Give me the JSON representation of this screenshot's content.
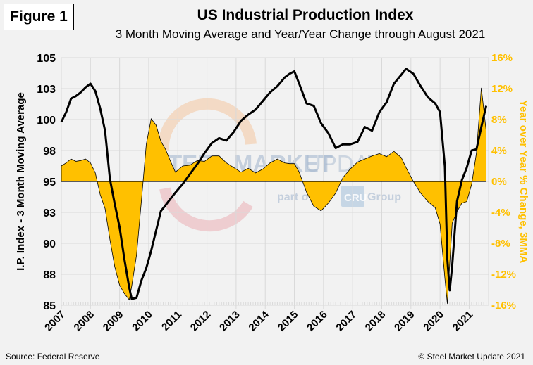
{
  "figure_label": "Figure 1",
  "title": "US Industrial Production  Index",
  "subtitle": "3 Month Moving Average and Year/Year Change through August 2021",
  "source": "Source: Federal Reserve",
  "copyright": "© Steel Market Update 2021",
  "watermark": {
    "brand": "STEEL MARKET UPDATE",
    "brand_bold": "STEEL MARKET",
    "brand_light": " UPDATE",
    "tagline_prefix": "part of the",
    "tagline_logo": "CRU",
    "tagline_suffix": "Group"
  },
  "colors": {
    "area_fill": "#FFC000",
    "line": "#000000",
    "grid": "#d9d9d9",
    "right_axis": "#FFC000"
  },
  "chart_data": {
    "type": "line+area",
    "title": "US Industrial Production  Index",
    "subtitle": "3 Month Moving Average and Year/Year Change through August 2021",
    "xlabel": "",
    "ylabel_left": "I.P. Index - 3 Month Moving Average",
    "ylabel_right": "Year over Year % Change, 3MMA",
    "x_start": "2007-01",
    "x_end": "2021-08",
    "x_ticks": [
      "2007",
      "2008",
      "2009",
      "2010",
      "2011",
      "2012",
      "2013",
      "2014",
      "2015",
      "2016",
      "2017",
      "2018",
      "2019",
      "2020",
      "2021"
    ],
    "ylim_left": [
      85,
      105
    ],
    "yticks_left": [
      105,
      103,
      100,
      98,
      95,
      93,
      90,
      88,
      85
    ],
    "ylim_right": [
      -16,
      16
    ],
    "yticks_right": [
      "16%",
      "12%",
      "8%",
      "4%",
      "0%",
      "-4%",
      "-8%",
      "-12%",
      "-16%"
    ],
    "grid": true,
    "legend": "none",
    "series": [
      {
        "name": "I.P. Index - 3 Month Moving Average",
        "axis": "left",
        "style": "line",
        "x": [
          "2007-01",
          "2007-03",
          "2007-05",
          "2007-07",
          "2007-09",
          "2007-11",
          "2008-01",
          "2008-03",
          "2008-05",
          "2008-07",
          "2008-09",
          "2008-11",
          "2009-01",
          "2009-03",
          "2009-05",
          "2009-06",
          "2009-08",
          "2009-10",
          "2009-12",
          "2010-02",
          "2010-04",
          "2010-06",
          "2010-08",
          "2010-10",
          "2010-12",
          "2011-03",
          "2011-06",
          "2011-09",
          "2011-12",
          "2012-03",
          "2012-06",
          "2012-09",
          "2012-12",
          "2013-03",
          "2013-06",
          "2013-09",
          "2013-12",
          "2014-03",
          "2014-06",
          "2014-09",
          "2014-11",
          "2015-01",
          "2015-03",
          "2015-06",
          "2015-09",
          "2015-12",
          "2016-03",
          "2016-06",
          "2016-09",
          "2016-12",
          "2017-03",
          "2017-06",
          "2017-09",
          "2017-12",
          "2018-03",
          "2018-06",
          "2018-09",
          "2018-11",
          "2019-02",
          "2019-05",
          "2019-08",
          "2019-11",
          "2020-01",
          "2020-03",
          "2020-04",
          "2020-05",
          "2020-06",
          "2020-08",
          "2020-10",
          "2020-12",
          "2021-02",
          "2021-04",
          "2021-06",
          "2021-08"
        ],
        "values": [
          99.8,
          100.6,
          101.7,
          101.9,
          102.2,
          102.6,
          102.9,
          102.3,
          100.9,
          99.1,
          95.2,
          93.2,
          91.3,
          88.7,
          86.4,
          85.5,
          85.6,
          87.0,
          88.0,
          89.4,
          91.0,
          92.6,
          93.1,
          93.6,
          94.1,
          94.8,
          95.6,
          96.4,
          97.3,
          98.1,
          98.5,
          98.3,
          99.0,
          99.9,
          100.4,
          100.8,
          101.5,
          102.2,
          102.7,
          103.4,
          103.7,
          103.9,
          102.9,
          101.3,
          101.1,
          99.7,
          98.9,
          97.7,
          98.0,
          98.0,
          98.2,
          99.4,
          99.1,
          100.6,
          101.4,
          102.9,
          103.6,
          104.1,
          103.7,
          102.7,
          101.8,
          101.3,
          100.6,
          96.2,
          88.7,
          86.2,
          88.2,
          93.4,
          95.1,
          96.1,
          97.5,
          97.6,
          99.4,
          101.1
        ]
      },
      {
        "name": "Year over Year % Change, 3MMA",
        "axis": "right",
        "style": "area",
        "x": [
          "2007-01",
          "2007-03",
          "2007-05",
          "2007-07",
          "2007-09",
          "2007-11",
          "2008-01",
          "2008-03",
          "2008-05",
          "2008-07",
          "2008-09",
          "2008-11",
          "2009-01",
          "2009-03",
          "2009-05",
          "2009-06",
          "2009-08",
          "2009-10",
          "2009-12",
          "2010-02",
          "2010-04",
          "2010-06",
          "2010-08",
          "2010-10",
          "2010-12",
          "2011-03",
          "2011-06",
          "2011-09",
          "2011-12",
          "2012-03",
          "2012-06",
          "2012-09",
          "2012-12",
          "2013-03",
          "2013-06",
          "2013-09",
          "2013-12",
          "2014-03",
          "2014-06",
          "2014-09",
          "2014-11",
          "2015-01",
          "2015-03",
          "2015-06",
          "2015-09",
          "2015-12",
          "2016-03",
          "2016-06",
          "2016-09",
          "2016-12",
          "2017-03",
          "2017-06",
          "2017-09",
          "2017-12",
          "2018-03",
          "2018-06",
          "2018-09",
          "2018-11",
          "2019-02",
          "2019-05",
          "2019-08",
          "2019-11",
          "2020-01",
          "2020-03",
          "2020-04",
          "2020-05",
          "2020-06",
          "2020-08",
          "2020-10",
          "2020-12",
          "2021-02",
          "2021-04",
          "2021-06",
          "2021-08"
        ],
        "values": [
          2.0,
          2.4,
          2.9,
          2.6,
          2.7,
          2.9,
          2.4,
          1.1,
          -1.7,
          -3.5,
          -7.5,
          -11.0,
          -13.4,
          -14.5,
          -15.3,
          -13.5,
          -9.5,
          -2.5,
          4.8,
          8.1,
          7.3,
          5.2,
          4.1,
          2.6,
          1.2,
          2.0,
          2.1,
          2.7,
          2.6,
          3.3,
          3.3,
          2.4,
          1.8,
          1.2,
          1.7,
          1.1,
          1.6,
          2.4,
          2.9,
          2.4,
          2.3,
          2.3,
          1.2,
          -1.4,
          -3.2,
          -3.8,
          -2.8,
          -1.5,
          0.5,
          1.6,
          2.5,
          2.9,
          3.3,
          3.6,
          3.2,
          3.9,
          3.1,
          1.8,
          0.0,
          -1.5,
          -2.6,
          -3.4,
          -5.5,
          -12.5,
          -15.8,
          -10.7,
          -5.4,
          -3.9,
          -2.8,
          -2.6,
          -0.4,
          3.7,
          12.1,
          6.5
        ]
      }
    ]
  }
}
